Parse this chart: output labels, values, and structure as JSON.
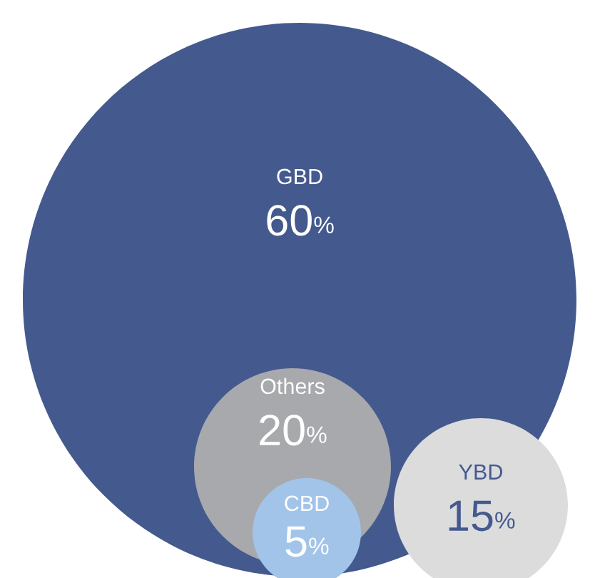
{
  "chart_data": {
    "type": "other",
    "categories": [
      "GBD",
      "Others",
      "CBD",
      "YBD"
    ],
    "values": [
      60,
      20,
      5,
      15
    ],
    "value_labels": [
      "60%",
      "20%",
      "5%",
      "15%"
    ],
    "colors": [
      "#44598e",
      "#a8a9ad",
      "#a2c4e9",
      "#dcdcdd"
    ]
  }
}
